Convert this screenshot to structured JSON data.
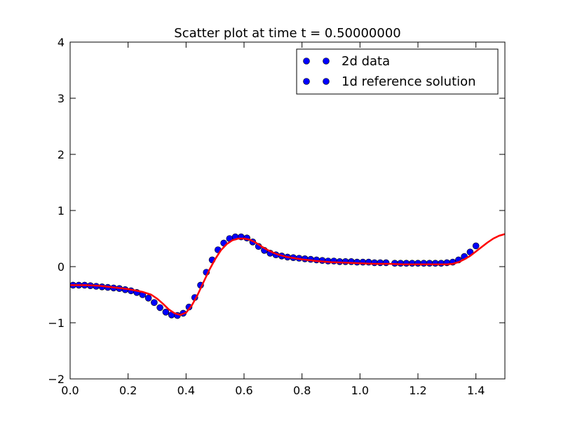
{
  "chart_data": {
    "type": "scatter",
    "title": "Scatter plot at time t =     0.50000000",
    "xlabel": "",
    "ylabel": "",
    "xlim": [
      0.0,
      1.5
    ],
    "ylim": [
      -2,
      4
    ],
    "x_ticks": [
      "0.0",
      "0.2",
      "0.4",
      "0.6",
      "0.8",
      "1.0",
      "1.2",
      "1.4"
    ],
    "x_tick_values": [
      0.0,
      0.2,
      0.4,
      0.6,
      0.8,
      1.0,
      1.2,
      1.4
    ],
    "y_ticks": [
      "−2",
      "−1",
      "0",
      "1",
      "2",
      "3",
      "4"
    ],
    "y_tick_values": [
      -2,
      -1,
      0,
      1,
      2,
      3,
      4
    ],
    "grid": false,
    "legend_position": "top-right",
    "legend": [
      "2d data",
      "1d reference solution"
    ],
    "series": [
      {
        "name": "2d data",
        "kind": "scatter",
        "color": "#0000ff",
        "edge_color": "#000000",
        "x": [
          0.01,
          0.03,
          0.05,
          0.07,
          0.09,
          0.11,
          0.13,
          0.15,
          0.17,
          0.19,
          0.21,
          0.23,
          0.25,
          0.27,
          0.29,
          0.31,
          0.33,
          0.35,
          0.37,
          0.39,
          0.41,
          0.43,
          0.45,
          0.47,
          0.49,
          0.51,
          0.53,
          0.55,
          0.57,
          0.59,
          0.61,
          0.63,
          0.65,
          0.67,
          0.69,
          0.71,
          0.73,
          0.75,
          0.77,
          0.79,
          0.81,
          0.83,
          0.85,
          0.87,
          0.89,
          0.91,
          0.93,
          0.95,
          0.97,
          0.99,
          1.01,
          1.03,
          1.05,
          1.07,
          1.09,
          1.12,
          1.14,
          1.16,
          1.18,
          1.2,
          1.22,
          1.24,
          1.26,
          1.28,
          1.3,
          1.32,
          1.34,
          1.36,
          1.38,
          1.4
        ],
        "y": [
          -0.33,
          -0.33,
          -0.33,
          -0.34,
          -0.35,
          -0.36,
          -0.37,
          -0.38,
          -0.39,
          -0.41,
          -0.43,
          -0.46,
          -0.5,
          -0.56,
          -0.64,
          -0.73,
          -0.81,
          -0.86,
          -0.87,
          -0.83,
          -0.72,
          -0.55,
          -0.33,
          -0.1,
          0.12,
          0.3,
          0.42,
          0.5,
          0.53,
          0.53,
          0.51,
          0.44,
          0.36,
          0.29,
          0.24,
          0.21,
          0.19,
          0.17,
          0.16,
          0.15,
          0.14,
          0.13,
          0.12,
          0.11,
          0.1,
          0.1,
          0.09,
          0.09,
          0.09,
          0.08,
          0.08,
          0.08,
          0.07,
          0.07,
          0.07,
          0.06,
          0.06,
          0.06,
          0.06,
          0.06,
          0.06,
          0.06,
          0.06,
          0.06,
          0.07,
          0.08,
          0.12,
          0.18,
          0.26,
          0.37
        ]
      },
      {
        "name": "1d reference solution",
        "kind": "line",
        "color": "#ff0000",
        "x": [
          0.0,
          0.05,
          0.1,
          0.15,
          0.2,
          0.25,
          0.28,
          0.3,
          0.32,
          0.34,
          0.36,
          0.38,
          0.4,
          0.42,
          0.44,
          0.46,
          0.48,
          0.5,
          0.52,
          0.54,
          0.56,
          0.58,
          0.6,
          0.62,
          0.64,
          0.66,
          0.68,
          0.7,
          0.72,
          0.75,
          0.8,
          0.85,
          0.9,
          0.95,
          1.0,
          1.05,
          1.1,
          1.15,
          1.2,
          1.25,
          1.3,
          1.32,
          1.34,
          1.36,
          1.38,
          1.4,
          1.42,
          1.44,
          1.46,
          1.48,
          1.5
        ],
        "y": [
          -0.33,
          -0.33,
          -0.34,
          -0.37,
          -0.4,
          -0.45,
          -0.5,
          -0.57,
          -0.66,
          -0.76,
          -0.83,
          -0.86,
          -0.82,
          -0.69,
          -0.5,
          -0.28,
          -0.06,
          0.13,
          0.29,
          0.4,
          0.47,
          0.5,
          0.5,
          0.48,
          0.43,
          0.36,
          0.3,
          0.25,
          0.21,
          0.17,
          0.13,
          0.1,
          0.08,
          0.07,
          0.06,
          0.05,
          0.05,
          0.04,
          0.04,
          0.04,
          0.04,
          0.05,
          0.08,
          0.13,
          0.19,
          0.27,
          0.35,
          0.43,
          0.5,
          0.55,
          0.58
        ]
      }
    ]
  }
}
